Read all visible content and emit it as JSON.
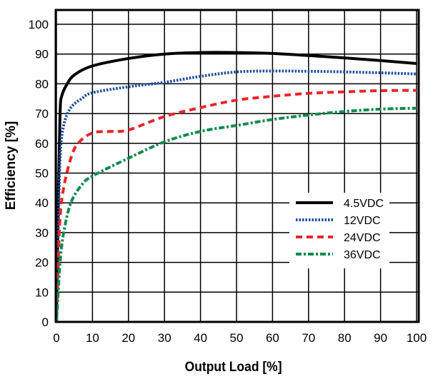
{
  "chart_data": {
    "type": "line",
    "title": "",
    "xlabel": "Output Load [%]",
    "ylabel": "Efficiency [%]",
    "xlim": [
      0,
      100
    ],
    "ylim": [
      0,
      105
    ],
    "xticks": [
      0,
      10,
      20,
      30,
      40,
      50,
      60,
      70,
      80,
      90,
      100
    ],
    "yticks": [
      0,
      10,
      20,
      30,
      40,
      50,
      60,
      70,
      80,
      90,
      100
    ],
    "grid": true,
    "legend_position": "center-right",
    "series": [
      {
        "name": "4.5VDC",
        "color": "#000000",
        "style": "solid",
        "x": [
          0,
          0.5,
          1,
          1.5,
          3,
          5,
          10,
          20,
          30,
          40,
          50,
          60,
          70,
          80,
          90,
          100
        ],
        "y": [
          0,
          40,
          70,
          76,
          80,
          83,
          86,
          88.5,
          90,
          90.5,
          90.5,
          90.2,
          89.5,
          88.7,
          87.8,
          86.8
        ]
      },
      {
        "name": "12VDC",
        "color": "#1f4e9c",
        "style": "dotted",
        "x": [
          0,
          0.5,
          1,
          2,
          4,
          7,
          10,
          20,
          30,
          40,
          50,
          60,
          70,
          80,
          90,
          100
        ],
        "y": [
          0,
          30,
          55,
          66,
          72,
          75,
          77,
          79,
          80.5,
          82.5,
          84,
          84.3,
          84.2,
          84,
          83.7,
          83.3
        ]
      },
      {
        "name": "24VDC",
        "color": "#e8262b",
        "style": "dashed",
        "x": [
          0,
          0.5,
          1,
          2,
          4,
          6,
          10,
          15,
          20,
          30,
          40,
          50,
          60,
          70,
          80,
          90,
          100
        ],
        "y": [
          0,
          20,
          35,
          45,
          55,
          60,
          63.5,
          64,
          64.5,
          69,
          72,
          74.5,
          75.8,
          76.8,
          77.3,
          77.7,
          77.8
        ]
      },
      {
        "name": "36VDC",
        "color": "#0e8a4f",
        "style": "dash-dot",
        "x": [
          0,
          0.5,
          1,
          2,
          4,
          7,
          10,
          20,
          30,
          40,
          50,
          60,
          70,
          80,
          90,
          100
        ],
        "y": [
          0,
          10,
          20,
          30,
          40,
          46,
          49,
          55,
          60.5,
          64,
          66,
          68,
          69.5,
          70.7,
          71.5,
          71.8
        ]
      }
    ]
  }
}
